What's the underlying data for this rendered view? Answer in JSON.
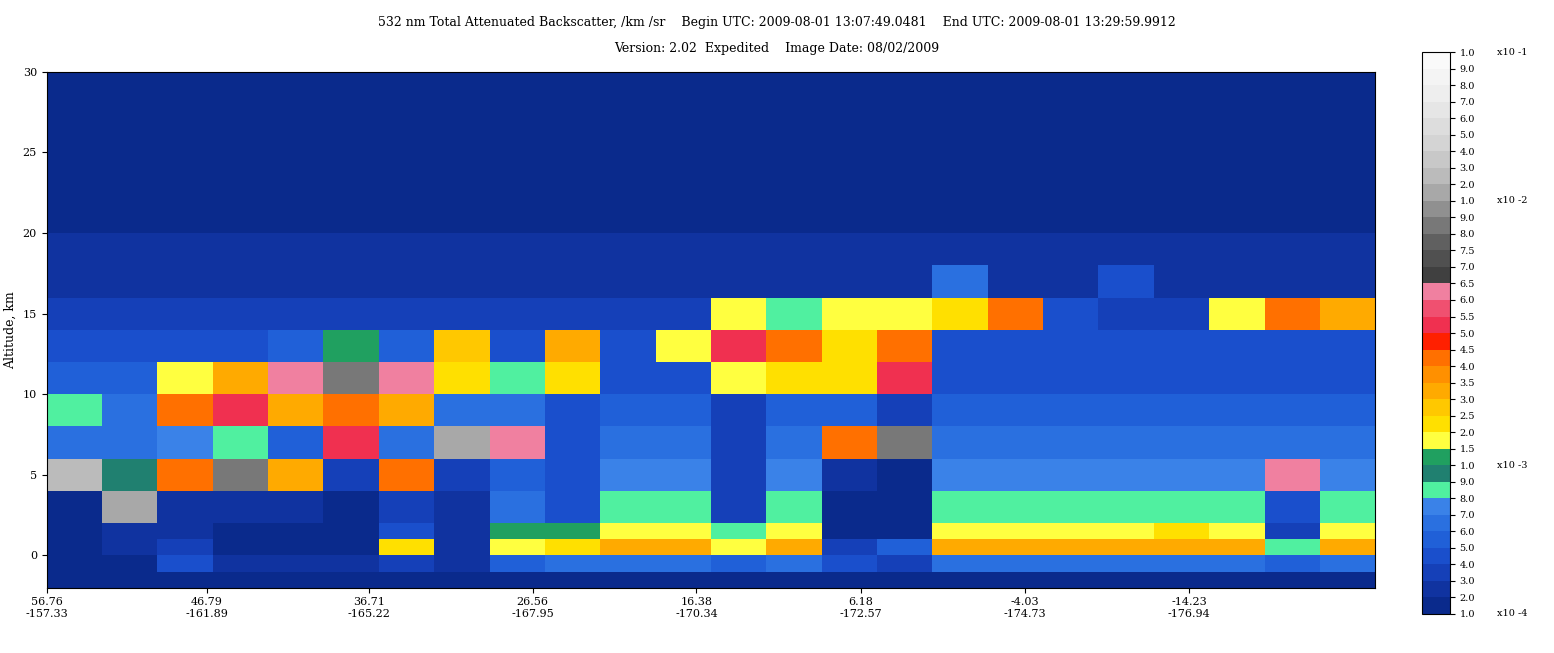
{
  "chart_data": {
    "type": "heatmap",
    "title": "532 nm Total Attenuated Backscatter, /km /sr    Begin UTC: 2009-08-01 13:07:49.0481    End UTC: 2009-08-01 13:29:59.9912",
    "subtitle": "Version: 2.02  Expedited    Image Date: 08/02/2009",
    "y_label": "Altitude, km",
    "xlim": [
      56.76,
      -25.8
    ],
    "xticks": [
      {
        "value": 56.76,
        "label": "56.76\n-157.33"
      },
      {
        "value": 46.79,
        "label": "46.79\n-161.89"
      },
      {
        "value": 36.71,
        "label": "36.71\n-165.22"
      },
      {
        "value": 26.56,
        "label": "26.56\n-167.95"
      },
      {
        "value": 16.38,
        "label": "16.38\n-170.34"
      },
      {
        "value": 6.18,
        "label": "6.18\n-172.57"
      },
      {
        "value": -4.03,
        "label": "-4.03\n-174.73"
      },
      {
        "value": -14.23,
        "label": "-14.23\n-176.94"
      }
    ],
    "ylim": [
      -2,
      30
    ],
    "yticks": [
      0,
      5,
      10,
      15,
      20,
      25,
      30
    ],
    "x_edges": [
      56.76,
      53.32,
      49.88,
      46.44,
      43.0,
      39.56,
      36.12,
      32.68,
      29.24,
      25.8,
      22.36,
      18.92,
      15.48,
      12.04,
      8.6,
      5.16,
      1.72,
      -1.72,
      -5.16,
      -8.6,
      -12.04,
      -15.48,
      -18.92,
      -22.36,
      -25.8
    ],
    "y_edges": [
      -2,
      -1,
      0,
      1,
      2,
      4,
      6,
      8,
      10,
      12,
      14,
      16,
      18,
      20,
      25,
      30
    ],
    "cells": [
      [
        0.0001,
        0.00012,
        0.00012,
        0.00012,
        0.00012,
        0.02,
        0.0006,
        0.0008,
        0.0005,
        0.0004,
        0.0003,
        0.00025,
        0.0002,
        0.00015,
        0.00012
      ],
      [
        0.0001,
        0.00015,
        0.0002,
        0.0002,
        0.01,
        0.0009,
        0.0006,
        0.0006,
        0.0005,
        0.0004,
        0.0003,
        0.00025,
        0.0002,
        0.00015,
        0.00012
      ],
      [
        0.0001,
        0.0004,
        0.0003,
        0.0002,
        0.0002,
        0.004,
        0.0007,
        0.004,
        0.0015,
        0.0004,
        0.0003,
        0.00025,
        0.0002,
        0.00015,
        0.00012
      ],
      [
        0.0001,
        0.0002,
        0.00015,
        0.00015,
        0.0002,
        0.008,
        0.0008,
        0.005,
        0.003,
        0.0004,
        0.0003,
        0.00025,
        0.0002,
        0.00015,
        0.00012
      ],
      [
        0.0001,
        0.0002,
        0.00015,
        0.00015,
        0.0002,
        0.003,
        0.0005,
        0.003,
        0.006,
        0.0005,
        0.0003,
        0.00025,
        0.0002,
        0.00015,
        0.00012
      ],
      [
        0.0001,
        0.0002,
        0.00015,
        0.00015,
        0.00015,
        0.0003,
        0.005,
        0.004,
        0.008,
        0.0012,
        0.0003,
        0.00025,
        0.0002,
        0.00015,
        0.00012
      ],
      [
        0.0001,
        0.0003,
        0.002,
        0.0004,
        0.0003,
        0.004,
        0.0006,
        0.003,
        0.006,
        0.0005,
        0.0003,
        0.00025,
        0.0002,
        0.00015,
        0.00012
      ],
      [
        0.0001,
        0.0002,
        0.0002,
        0.0002,
        0.0002,
        0.0003,
        0.012,
        0.0006,
        0.002,
        0.0025,
        0.0003,
        0.00025,
        0.0002,
        0.00015,
        0.00012
      ],
      [
        0.00012,
        0.0005,
        0.0015,
        0.001,
        0.0006,
        0.0005,
        0.006,
        0.0006,
        0.0008,
        0.0004,
        0.0003,
        0.00025,
        0.0002,
        0.00015,
        0.00012
      ],
      [
        0.00015,
        0.0006,
        0.002,
        0.0012,
        0.0004,
        0.0004,
        0.0004,
        0.0004,
        0.002,
        0.003,
        0.0003,
        0.00025,
        0.0002,
        0.00015,
        0.00012
      ],
      [
        0.00015,
        0.0006,
        0.003,
        0.0015,
        0.0008,
        0.0007,
        0.0006,
        0.0005,
        0.0004,
        0.0004,
        0.0003,
        0.00025,
        0.0002,
        0.00015,
        0.00012
      ],
      [
        0.00015,
        0.0006,
        0.003,
        0.0015,
        0.0008,
        0.0007,
        0.0006,
        0.0005,
        0.0004,
        0.0015,
        0.0003,
        0.00025,
        0.0002,
        0.00015,
        0.00012
      ],
      [
        0.00015,
        0.0005,
        0.0015,
        0.0008,
        0.0003,
        0.0003,
        0.0003,
        0.0003,
        0.0015,
        0.005,
        0.0015,
        0.00025,
        0.0002,
        0.00015,
        0.00012
      ],
      [
        0.00015,
        0.0006,
        0.003,
        0.0015,
        0.0008,
        0.0007,
        0.0006,
        0.0005,
        0.002,
        0.004,
        0.0008,
        0.00025,
        0.0002,
        0.00015,
        0.00012
      ],
      [
        0.0001,
        0.0004,
        0.0003,
        0.00015,
        0.00015,
        0.0002,
        0.004,
        0.0005,
        0.002,
        0.002,
        0.0015,
        0.00025,
        0.0002,
        0.00015,
        0.00012
      ],
      [
        0.0001,
        0.0003,
        0.0005,
        0.00015,
        0.00015,
        0.00015,
        0.008,
        0.0003,
        0.005,
        0.004,
        0.0015,
        0.00025,
        0.0002,
        0.00015,
        0.00012
      ],
      [
        0.00015,
        0.0006,
        0.003,
        0.0015,
        0.0008,
        0.0007,
        0.0006,
        0.0005,
        0.0004,
        0.0004,
        0.002,
        0.0006,
        0.0002,
        0.00015,
        0.00012
      ],
      [
        0.00015,
        0.0006,
        0.003,
        0.0015,
        0.0008,
        0.0007,
        0.0006,
        0.0005,
        0.0004,
        0.0004,
        0.004,
        0.00025,
        0.0002,
        0.00015,
        0.00012
      ],
      [
        0.00015,
        0.0006,
        0.003,
        0.0015,
        0.0008,
        0.0007,
        0.0006,
        0.0005,
        0.0004,
        0.0004,
        0.0004,
        0.00025,
        0.0002,
        0.00015,
        0.00012
      ],
      [
        0.00015,
        0.0006,
        0.003,
        0.0015,
        0.0008,
        0.0007,
        0.0006,
        0.0005,
        0.0004,
        0.0004,
        0.0003,
        0.0004,
        0.0002,
        0.00015,
        0.00012
      ],
      [
        0.00015,
        0.0006,
        0.003,
        0.002,
        0.0008,
        0.0007,
        0.0006,
        0.0005,
        0.0004,
        0.0004,
        0.0003,
        0.00025,
        0.0002,
        0.00015,
        0.00012
      ],
      [
        0.00015,
        0.0006,
        0.003,
        0.0015,
        0.0008,
        0.0007,
        0.0006,
        0.0005,
        0.0004,
        0.0004,
        0.0015,
        0.00025,
        0.0002,
        0.00015,
        0.00012
      ],
      [
        0.00015,
        0.0005,
        0.0008,
        0.0003,
        0.0004,
        0.006,
        0.0006,
        0.0005,
        0.0004,
        0.0004,
        0.004,
        0.00025,
        0.0002,
        0.00015,
        0.00012
      ],
      [
        0.00015,
        0.0006,
        0.003,
        0.0015,
        0.0008,
        0.0007,
        0.0006,
        0.0005,
        0.0004,
        0.0004,
        0.003,
        0.00025,
        0.0002,
        0.00015,
        0.00012
      ]
    ],
    "colorbar": {
      "boundaries": [
        0.0001,
        0.0002,
        0.0003,
        0.0004,
        0.0005,
        0.0006,
        0.0007,
        0.0008,
        0.0009,
        0.001,
        0.0015,
        0.002,
        0.0025,
        0.003,
        0.0035,
        0.004,
        0.0045,
        0.005,
        0.0055,
        0.006,
        0.0065,
        0.007,
        0.0075,
        0.008,
        0.009,
        0.01,
        0.02,
        0.03,
        0.04,
        0.05,
        0.06,
        0.07,
        0.08,
        0.09,
        0.1
      ],
      "colors": [
        "#0a2a8c",
        "#1033a0",
        "#1540b8",
        "#1a4fcc",
        "#2060d8",
        "#2a70e0",
        "#3a82e8",
        "#50f0a0",
        "#208070",
        "#20a060",
        "#ffff40",
        "#ffe000",
        "#ffc800",
        "#ffaa00",
        "#ff9000",
        "#ff7000",
        "#ff2000",
        "#f03050",
        "#f05070",
        "#f080a0",
        "#404040",
        "#505050",
        "#606060",
        "#787878",
        "#909090",
        "#a8a8a8",
        "#bbbbbb",
        "#c8c8c8",
        "#d4d4d4",
        "#dddddd",
        "#e6e6e6",
        "#eeeeee",
        "#f4f4f4",
        "#fafafa"
      ],
      "ticks": [
        {
          "value": 0.0001,
          "label": "1.0"
        },
        {
          "value": 0.0002,
          "label": "2.0"
        },
        {
          "value": 0.0003,
          "label": "3.0"
        },
        {
          "value": 0.0004,
          "label": "4.0"
        },
        {
          "value": 0.0005,
          "label": "5.0"
        },
        {
          "value": 0.0006,
          "label": "6.0"
        },
        {
          "value": 0.0007,
          "label": "7.0"
        },
        {
          "value": 0.0008,
          "label": "8.0"
        },
        {
          "value": 0.0009,
          "label": "9.0"
        },
        {
          "value": 0.001,
          "label": "1.0"
        },
        {
          "value": 0.0015,
          "label": "1.5"
        },
        {
          "value": 0.002,
          "label": "2.0"
        },
        {
          "value": 0.0025,
          "label": "2.5"
        },
        {
          "value": 0.003,
          "label": "3.0"
        },
        {
          "value": 0.0035,
          "label": "3.5"
        },
        {
          "value": 0.004,
          "label": "4.0"
        },
        {
          "value": 0.0045,
          "label": "4.5"
        },
        {
          "value": 0.005,
          "label": "5.0"
        },
        {
          "value": 0.0055,
          "label": "5.5"
        },
        {
          "value": 0.006,
          "label": "6.0"
        },
        {
          "value": 0.0065,
          "label": "6.5"
        },
        {
          "value": 0.007,
          "label": "7.0"
        },
        {
          "value": 0.0075,
          "label": "7.5"
        },
        {
          "value": 0.008,
          "label": "8.0"
        },
        {
          "value": 0.009,
          "label": "9.0"
        },
        {
          "value": 0.01,
          "label": "1.0"
        },
        {
          "value": 0.02,
          "label": "2.0"
        },
        {
          "value": 0.03,
          "label": "3.0"
        },
        {
          "value": 0.04,
          "label": "4.0"
        },
        {
          "value": 0.05,
          "label": "5.0"
        },
        {
          "value": 0.06,
          "label": "6.0"
        },
        {
          "value": 0.07,
          "label": "7.0"
        },
        {
          "value": 0.08,
          "label": "8.0"
        },
        {
          "value": 0.09,
          "label": "9.0"
        },
        {
          "value": 0.1,
          "label": "1.0"
        }
      ],
      "exponents": [
        {
          "value": 0.0001,
          "label": "x10 -4"
        },
        {
          "value": 0.001,
          "label": "x10 -3"
        },
        {
          "value": 0.01,
          "label": "x10 -2"
        },
        {
          "value": 0.1,
          "label": "x10 -1"
        }
      ]
    }
  }
}
